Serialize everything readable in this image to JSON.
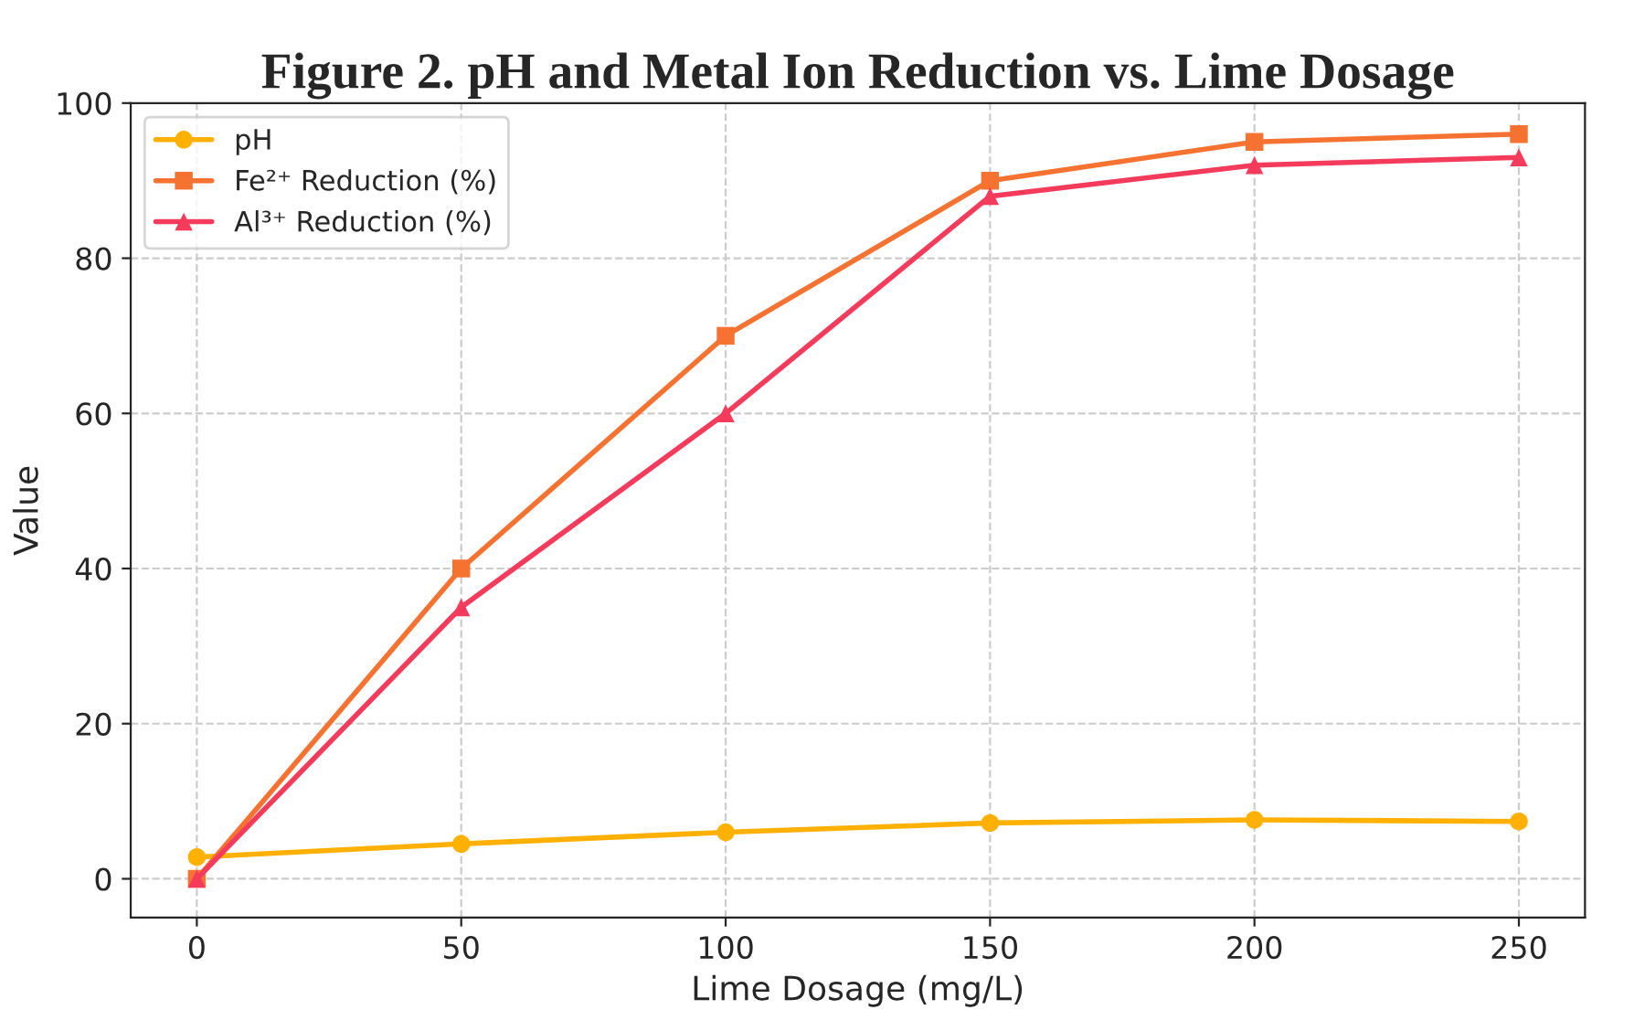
{
  "chart_data": {
    "type": "line",
    "title": "Figure 2. pH and Metal Ion Reduction vs. Lime Dosage",
    "xlabel": "Lime Dosage (mg/L)",
    "ylabel": "Value",
    "x": [
      0,
      50,
      100,
      150,
      200,
      250
    ],
    "series": [
      {
        "name": "pH",
        "color": "#ffb000",
        "marker": "circle",
        "values": [
          2.8,
          4.5,
          6.0,
          7.2,
          7.6,
          7.4
        ]
      },
      {
        "name": "Fe²⁺ Reduction (%)",
        "color": "#f57231",
        "marker": "square",
        "values": [
          0,
          40,
          70,
          90,
          95,
          96
        ]
      },
      {
        "name": "Al³⁺ Reduction (%)",
        "color": "#f53b5c",
        "marker": "triangle",
        "values": [
          0,
          35,
          60,
          88,
          92,
          93
        ]
      }
    ],
    "xlim": [
      -12.5,
      262.5
    ],
    "xticks": [
      0,
      50,
      100,
      150,
      200,
      250
    ],
    "ylim": [
      -5,
      100
    ],
    "yticks": [
      0,
      20,
      40,
      60,
      80,
      100
    ],
    "grid": true,
    "legend": "top left",
    "line_style": "solid"
  }
}
